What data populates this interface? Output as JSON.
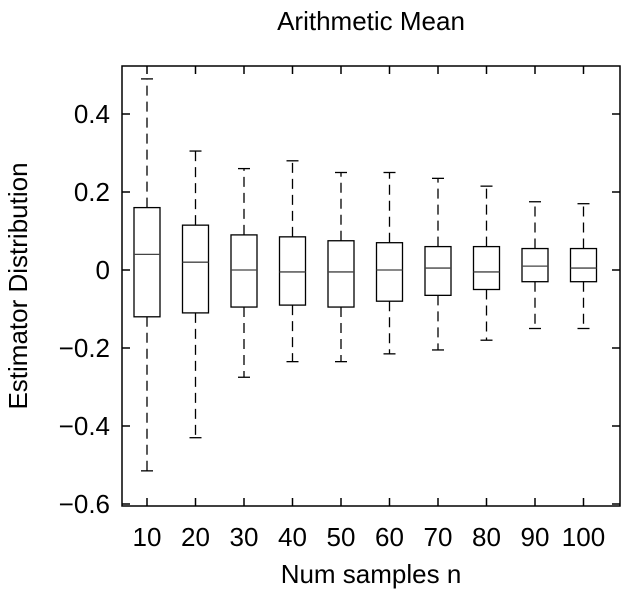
{
  "chart_data": {
    "type": "boxplot",
    "title": "Arithmetic Mean",
    "xlabel": "Num samples n",
    "ylabel": "Estimator Distribution",
    "ylim": [
      -0.62,
      0.55
    ],
    "yticks": [
      -0.6,
      -0.4,
      -0.2,
      0,
      0.2,
      0.4
    ],
    "ytick_labels": [
      "−0.6",
      "−0.4",
      "−0.2",
      "0",
      "0.2",
      "0.4"
    ],
    "grid": false,
    "categories": [
      "10",
      "20",
      "30",
      "40",
      "50",
      "60",
      "70",
      "80",
      "90",
      "100"
    ],
    "boxes": [
      {
        "x": "10",
        "whisker_low": -0.515,
        "q1": -0.12,
        "median": 0.04,
        "q3": 0.16,
        "whisker_high": 0.49
      },
      {
        "x": "20",
        "whisker_low": -0.43,
        "q1": -0.11,
        "median": 0.02,
        "q3": 0.115,
        "whisker_high": 0.305
      },
      {
        "x": "30",
        "whisker_low": -0.275,
        "q1": -0.095,
        "median": 0.0,
        "q3": 0.09,
        "whisker_high": 0.26
      },
      {
        "x": "40",
        "whisker_low": -0.235,
        "q1": -0.09,
        "median": -0.005,
        "q3": 0.085,
        "whisker_high": 0.28
      },
      {
        "x": "50",
        "whisker_low": -0.235,
        "q1": -0.095,
        "median": -0.005,
        "q3": 0.075,
        "whisker_high": 0.25
      },
      {
        "x": "60",
        "whisker_low": -0.215,
        "q1": -0.08,
        "median": 0.0,
        "q3": 0.07,
        "whisker_high": 0.25
      },
      {
        "x": "70",
        "whisker_low": -0.205,
        "q1": -0.065,
        "median": 0.005,
        "q3": 0.06,
        "whisker_high": 0.235
      },
      {
        "x": "80",
        "whisker_low": -0.18,
        "q1": -0.05,
        "median": -0.005,
        "q3": 0.06,
        "whisker_high": 0.215
      },
      {
        "x": "90",
        "whisker_low": -0.15,
        "q1": -0.03,
        "median": 0.01,
        "q3": 0.055,
        "whisker_high": 0.175
      },
      {
        "x": "100",
        "whisker_low": -0.15,
        "q1": -0.03,
        "median": 0.005,
        "q3": 0.055,
        "whisker_high": 0.17
      }
    ]
  }
}
